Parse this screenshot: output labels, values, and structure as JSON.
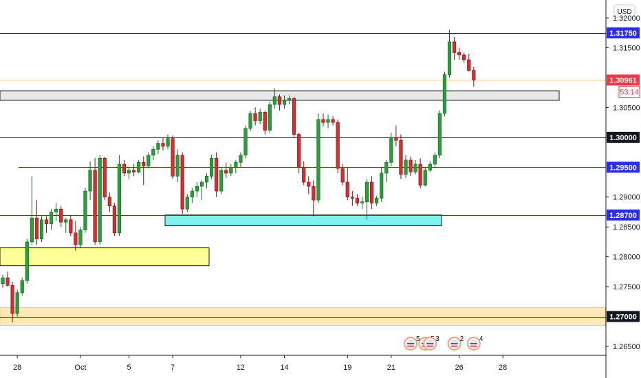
{
  "chart_data": {
    "type": "candlestick",
    "currency": "USD",
    "ylim": [
      1.2635,
      1.323
    ],
    "y_ticks": [
      "1.32000",
      "1.31500",
      "1.30500",
      "1.29000",
      "1.28500",
      "1.28000",
      "1.27500",
      "1.26500"
    ],
    "x_ticks": [
      {
        "label": "28",
        "pos": 3
      },
      {
        "label": "Oct",
        "pos": 16
      },
      {
        "label": "5",
        "pos": 26
      },
      {
        "label": "7",
        "pos": 35
      },
      {
        "label": "12",
        "pos": 49
      },
      {
        "label": "14",
        "pos": 58
      },
      {
        "label": "19",
        "pos": 71
      },
      {
        "label": "21",
        "pos": 80
      },
      {
        "label": "26",
        "pos": 94
      },
      {
        "label": "28",
        "pos": 103
      }
    ],
    "candles": [
      [
        1.2755,
        1.277,
        1.2748,
        1.2765
      ],
      [
        1.2765,
        1.2775,
        1.275,
        1.2752
      ],
      [
        1.2752,
        1.2758,
        1.269,
        1.2705
      ],
      [
        1.2705,
        1.2745,
        1.27,
        1.274
      ],
      [
        1.274,
        1.2765,
        1.2735,
        1.276
      ],
      [
        1.276,
        1.283,
        1.2755,
        1.2825
      ],
      [
        1.2825,
        1.2935,
        1.282,
        1.2865
      ],
      [
        1.2865,
        1.2895,
        1.282,
        1.283
      ],
      [
        1.283,
        1.2868,
        1.2825,
        1.2862
      ],
      [
        1.2862,
        1.2868,
        1.284,
        1.2855
      ],
      [
        1.2855,
        1.288,
        1.2845,
        1.2875
      ],
      [
        1.2875,
        1.289,
        1.286,
        1.288
      ],
      [
        1.288,
        1.2885,
        1.285,
        1.2858
      ],
      [
        1.2858,
        1.2865,
        1.284,
        1.2862
      ],
      [
        1.2862,
        1.287,
        1.2835,
        1.284
      ],
      [
        1.284,
        1.286,
        1.281,
        1.282
      ],
      [
        1.282,
        1.285,
        1.2815,
        1.2845
      ],
      [
        1.2845,
        1.2915,
        1.284,
        1.291
      ],
      [
        1.291,
        1.296,
        1.2895,
        1.2945
      ],
      [
        1.2945,
        1.2965,
        1.282,
        1.2825
      ],
      [
        1.2825,
        1.297,
        1.282,
        1.2965
      ],
      [
        1.2965,
        1.2968,
        1.2895,
        1.29
      ],
      [
        1.29,
        1.2908,
        1.2875,
        1.2885
      ],
      [
        1.2885,
        1.289,
        1.2835,
        1.284
      ],
      [
        1.284,
        1.297,
        1.2835,
        1.2955
      ],
      [
        1.2955,
        1.2962,
        1.2935,
        1.294
      ],
      [
        1.294,
        1.295,
        1.293,
        1.2945
      ],
      [
        1.2945,
        1.2955,
        1.2935,
        1.2942
      ],
      [
        1.2942,
        1.2962,
        1.294,
        1.2958
      ],
      [
        1.2958,
        1.2968,
        1.292,
        1.2952
      ],
      [
        1.2952,
        1.2975,
        1.2948,
        1.297
      ],
      [
        1.297,
        1.2985,
        1.2962,
        1.298
      ],
      [
        1.298,
        1.2995,
        1.2972,
        1.299
      ],
      [
        1.299,
        1.3,
        1.2978,
        1.2985
      ],
      [
        1.2985,
        1.3005,
        1.298,
        1.2998
      ],
      [
        1.2998,
        1.3003,
        1.293,
        1.2935
      ],
      [
        1.2935,
        1.298,
        1.2925,
        1.297
      ],
      [
        1.297,
        1.2975,
        1.2872,
        1.288
      ],
      [
        1.288,
        1.2905,
        1.2875,
        1.29
      ],
      [
        1.29,
        1.2915,
        1.289,
        1.291
      ],
      [
        1.291,
        1.2925,
        1.29,
        1.2918
      ],
      [
        1.2918,
        1.2928,
        1.2895,
        1.2925
      ],
      [
        1.2925,
        1.294,
        1.2915,
        1.2935
      ],
      [
        1.2935,
        1.297,
        1.293,
        1.2965
      ],
      [
        1.2965,
        1.2975,
        1.29,
        1.291
      ],
      [
        1.291,
        1.295,
        1.2905,
        1.2945
      ],
      [
        1.2945,
        1.2958,
        1.2932,
        1.294
      ],
      [
        1.294,
        1.2955,
        1.2935,
        1.295
      ],
      [
        1.295,
        1.2962,
        1.294,
        1.2958
      ],
      [
        1.2958,
        1.2975,
        1.295,
        1.297
      ],
      [
        1.297,
        1.302,
        1.2965,
        1.3015
      ],
      [
        1.3015,
        1.3045,
        1.301,
        1.304
      ],
      [
        1.304,
        1.305,
        1.302,
        1.3028
      ],
      [
        1.3028,
        1.3048,
        1.3022,
        1.3042
      ],
      [
        1.3042,
        1.3045,
        1.3005,
        1.3012
      ],
      [
        1.3012,
        1.306,
        1.3008,
        1.3055
      ],
      [
        1.3055,
        1.3082,
        1.3048,
        1.3068
      ],
      [
        1.3068,
        1.3072,
        1.3045,
        1.3055
      ],
      [
        1.3055,
        1.307,
        1.3048,
        1.3062
      ],
      [
        1.3062,
        1.307,
        1.3055,
        1.3065
      ],
      [
        1.3065,
        1.3068,
        1.3,
        1.3005
      ],
      [
        1.3005,
        1.3008,
        1.294,
        1.295
      ],
      [
        1.295,
        1.296,
        1.292,
        1.2925
      ],
      [
        1.2925,
        1.2935,
        1.2905,
        1.2918
      ],
      [
        1.2918,
        1.2928,
        1.2868,
        1.2895
      ],
      [
        1.2895,
        1.304,
        1.289,
        1.303
      ],
      [
        1.303,
        1.304,
        1.3018,
        1.3025
      ],
      [
        1.3025,
        1.3038,
        1.3015,
        1.303
      ],
      [
        1.303,
        1.3035,
        1.302,
        1.3025
      ],
      [
        1.3025,
        1.303,
        1.294,
        1.2948
      ],
      [
        1.2948,
        1.2955,
        1.292,
        1.2925
      ],
      [
        1.2925,
        1.295,
        1.2895,
        1.29
      ],
      [
        1.29,
        1.291,
        1.2885,
        1.2898
      ],
      [
        1.2898,
        1.2905,
        1.2885,
        1.289
      ],
      [
        1.289,
        1.29,
        1.288,
        1.2892
      ],
      [
        1.2892,
        1.293,
        1.2862,
        1.2925
      ],
      [
        1.2925,
        1.2935,
        1.288,
        1.289
      ],
      [
        1.289,
        1.2902,
        1.2885,
        1.2898
      ],
      [
        1.2898,
        1.295,
        1.2892,
        1.294
      ],
      [
        1.294,
        1.2962,
        1.2925,
        1.2958
      ],
      [
        1.2958,
        1.3008,
        1.2952,
        1.3
      ],
      [
        1.3,
        1.302,
        1.2985,
        1.2995
      ],
      [
        1.2995,
        1.3005,
        1.293,
        1.2938
      ],
      [
        1.2938,
        1.297,
        1.2932,
        1.2962
      ],
      [
        1.2962,
        1.2968,
        1.2935,
        1.2942
      ],
      [
        1.2942,
        1.2962,
        1.2938,
        1.2955
      ],
      [
        1.2955,
        1.2965,
        1.2915,
        1.292
      ],
      [
        1.292,
        1.295,
        1.2918,
        1.2945
      ],
      [
        1.2945,
        1.296,
        1.2942,
        1.2955
      ],
      [
        1.2955,
        1.2975,
        1.295,
        1.297
      ],
      [
        1.297,
        1.3045,
        1.2965,
        1.304
      ],
      [
        1.304,
        1.311,
        1.3035,
        1.3105
      ],
      [
        1.3105,
        1.318,
        1.31,
        1.316
      ],
      [
        1.316,
        1.3168,
        1.313,
        1.3142
      ],
      [
        1.3142,
        1.315,
        1.313,
        1.3138
      ],
      [
        1.3138,
        1.3142,
        1.3125,
        1.313
      ],
      [
        1.313,
        1.314,
        1.311,
        1.3112
      ],
      [
        1.3112,
        1.3118,
        1.3085,
        1.3096
      ]
    ],
    "horizontal_lines": [
      {
        "price": 1.3175,
        "color": "#131722",
        "label": "1.31750",
        "tag_color": "#2a2ee8"
      },
      {
        "price": 1.3096,
        "color": "#f4c48a",
        "label": "1.30961",
        "sublabel": "53:14",
        "tag_color": "#f23645"
      },
      {
        "price": 1.3,
        "color": "#131722",
        "label": "1.30000",
        "tag_color": "#131722"
      },
      {
        "price": 1.295,
        "color": "#2a2ee8",
        "label": "1.29500",
        "tag_color": "#2a2ee8",
        "x_start": 27
      },
      {
        "price": 1.287,
        "color": "#2a2ee8",
        "label": "1.28700",
        "tag_color": "#2a2ee8"
      },
      {
        "price": 1.27,
        "color": "#131722",
        "label": "1.27000",
        "tag_color": "#131722"
      }
    ],
    "zones": [
      {
        "from": 0,
        "to": 813,
        "top": 1.3078,
        "bottom": 1.3062,
        "fill": "#e8e8e8",
        "stroke": "#131722"
      },
      {
        "from": 240,
        "to": 642,
        "top": 1.287,
        "bottom": 1.2852,
        "fill": "#7ff0f0",
        "stroke": "#131722"
      },
      {
        "from": 0,
        "to": 304,
        "top": 1.2815,
        "bottom": 1.2785,
        "fill": "#ffff99",
        "stroke": "#131722"
      },
      {
        "from": 0,
        "to": 880,
        "top": 1.2715,
        "bottom": 1.2685,
        "fill": "#ffe9b8",
        "stroke": "#f4c48a"
      }
    ],
    "events": [
      {
        "pos": 84,
        "count": "5"
      },
      {
        "pos": 87,
        "count": "5"
      },
      {
        "pos": 88,
        "count": "3"
      },
      {
        "pos": 93,
        "count": "2"
      },
      {
        "pos": 97,
        "count": "4"
      }
    ],
    "colors": {
      "up": "#26a69a",
      "up_fill": "#2e9b3c",
      "down": "#c2185b",
      "down_fill": "#d32f2f",
      "axis": "#131722"
    }
  }
}
